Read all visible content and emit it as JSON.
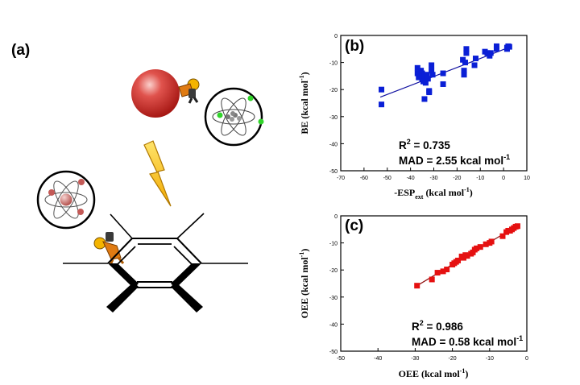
{
  "panel_a": {
    "label": "(a)"
  },
  "colors": {
    "panel_b": "#0a1fd6",
    "panel_c": "#e51010",
    "sphere": "#d0312d"
  },
  "icons": [
    "sphere",
    "atom-icon",
    "lightning-icon",
    "benzene-ring",
    "worker-figure"
  ],
  "chart_data": [
    {
      "type": "scatter",
      "panel_label": "(b)",
      "xlabel_main": "-ESP",
      "xlabel_sub": "ext",
      "xlabel_rest": " (kcal mol",
      "xlabel_sup": "-1",
      "xlabel_end": ")",
      "ylabel_main": "BE (kcal mol",
      "ylabel_sup": "-1",
      "ylabel_end": ")",
      "xlim": [
        -70,
        10
      ],
      "ylim": [
        -50,
        0
      ],
      "xticks": [
        "-70",
        "-60",
        "-50",
        "-40",
        "-30",
        "-20",
        "-10",
        "0",
        "10"
      ],
      "yticks": [
        "0",
        "-10",
        "-20",
        "-30",
        "-40",
        "-50"
      ],
      "r2_label": "R",
      "r2_sup": "2",
      "r2_value": " = 0.735",
      "mad_text": "MAD = 2.55 kcal mol",
      "mad_sup": "-1",
      "fit": {
        "x": [
          -53,
          3
        ],
        "y": [
          -22.8,
          -4.2
        ]
      },
      "points": [
        [
          -52.5,
          -20
        ],
        [
          -52.5,
          -25.5
        ],
        [
          -37,
          -12
        ],
        [
          -37,
          -14
        ],
        [
          -36.5,
          -15.5
        ],
        [
          -35.5,
          -13
        ],
        [
          -35,
          -14
        ],
        [
          -35,
          -16
        ],
        [
          -34.5,
          -17
        ],
        [
          -34,
          -15
        ],
        [
          -34,
          -23.5
        ],
        [
          -33.5,
          -17.5
        ],
        [
          -33,
          -14.5
        ],
        [
          -32.5,
          -16
        ],
        [
          -32,
          -20.5
        ],
        [
          -32,
          -21
        ],
        [
          -31,
          -13
        ],
        [
          -31,
          -11
        ],
        [
          -30.5,
          -14.5
        ],
        [
          -26,
          -14
        ],
        [
          -26,
          -18
        ],
        [
          -17.5,
          -9
        ],
        [
          -17,
          -13
        ],
        [
          -17,
          -14.5
        ],
        [
          -16.5,
          -10
        ],
        [
          -16,
          -5
        ],
        [
          -16,
          -6.5
        ],
        [
          -12.5,
          -11
        ],
        [
          -12,
          -8.5
        ],
        [
          -8,
          -6
        ],
        [
          -7,
          -6.5
        ],
        [
          -6,
          -7.5
        ],
        [
          -5.5,
          -6.5
        ],
        [
          -3,
          -4
        ],
        [
          -3,
          -5
        ],
        [
          1.5,
          -5
        ],
        [
          1.5,
          -4.5
        ],
        [
          2,
          -4
        ],
        [
          2.5,
          -4.2
        ]
      ]
    },
    {
      "type": "scatter",
      "panel_label": "(c)",
      "xlabel_main": "OEE (kcal mol",
      "xlabel_sup": "-1",
      "xlabel_end": ")",
      "ylabel_main": "OEE (kcal mol",
      "ylabel_sup": "-1",
      "ylabel_end": ")",
      "xlim": [
        -50,
        0
      ],
      "ylim": [
        -50,
        0
      ],
      "xticks": [
        "-50",
        "-40",
        "-30",
        "-20",
        "-10",
        "0"
      ],
      "yticks": [
        "0",
        "-10",
        "-20",
        "-30",
        "-40",
        "-50"
      ],
      "r2_label": "R",
      "r2_sup": "2",
      "r2_value": " = 0.986",
      "mad_text": "MAD = 0.58 kcal mol",
      "mad_sup": "-1",
      "fit": {
        "x": [
          -29.5,
          -2.5
        ],
        "y": [
          -25.8,
          -3.6
        ]
      },
      "points": [
        [
          -29.5,
          -25.8
        ],
        [
          -25.5,
          -23.5
        ],
        [
          -24,
          -21
        ],
        [
          -22.5,
          -20.5
        ],
        [
          -21.5,
          -19.8
        ],
        [
          -20,
          -18
        ],
        [
          -19.5,
          -17.5
        ],
        [
          -19,
          -17
        ],
        [
          -18.5,
          -16.5
        ],
        [
          -17.5,
          -15
        ],
        [
          -17,
          -15.5
        ],
        [
          -16.5,
          -14.5
        ],
        [
          -16,
          -14.8
        ],
        [
          -15,
          -14
        ],
        [
          -14.5,
          -13.5
        ],
        [
          -14,
          -12.5
        ],
        [
          -13.5,
          -12
        ],
        [
          -12.5,
          -11.5
        ],
        [
          -11,
          -10.5
        ],
        [
          -10,
          -10
        ],
        [
          -9.5,
          -9.5
        ],
        [
          -6.5,
          -7.5
        ],
        [
          -5.5,
          -6
        ],
        [
          -5,
          -5.5
        ],
        [
          -4.5,
          -5.5
        ],
        [
          -4,
          -5
        ],
        [
          -3.5,
          -4.5
        ],
        [
          -3,
          -4
        ],
        [
          -2.5,
          -3.8
        ]
      ]
    }
  ]
}
